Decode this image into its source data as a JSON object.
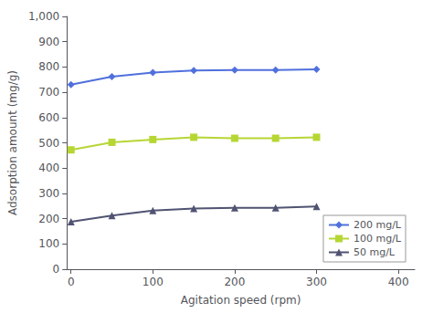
{
  "chart_data": {
    "type": "line",
    "xlabel": "Agitation speed (rpm)",
    "ylabel": "Adsorption amount (mg/g)",
    "series": [
      {
        "name": "200 mg/L",
        "marker": "diamond",
        "x": [
          0,
          50,
          100,
          150,
          200,
          250,
          300
        ],
        "values": [
          730,
          762,
          778,
          786,
          788,
          788,
          791
        ]
      },
      {
        "name": "100 mg/L",
        "marker": "square",
        "x": [
          0,
          50,
          100,
          150,
          200,
          250,
          300
        ],
        "values": [
          472,
          502,
          513,
          522,
          518,
          518,
          522
        ]
      },
      {
        "name": "50 mg/L",
        "marker": "triangle",
        "x": [
          0,
          50,
          100,
          150,
          200,
          250,
          300
        ],
        "values": [
          188,
          212,
          232,
          240,
          243,
          243,
          248
        ]
      }
    ],
    "xlim": [
      -5,
      420
    ],
    "xticks": [
      0,
      100,
      200,
      300,
      400
    ],
    "ylim": [
      0,
      1000
    ],
    "yticks": [
      0,
      100,
      200,
      300,
      400,
      500,
      600,
      700,
      800,
      900,
      1000
    ],
    "grid": false,
    "legend": "lower right"
  }
}
